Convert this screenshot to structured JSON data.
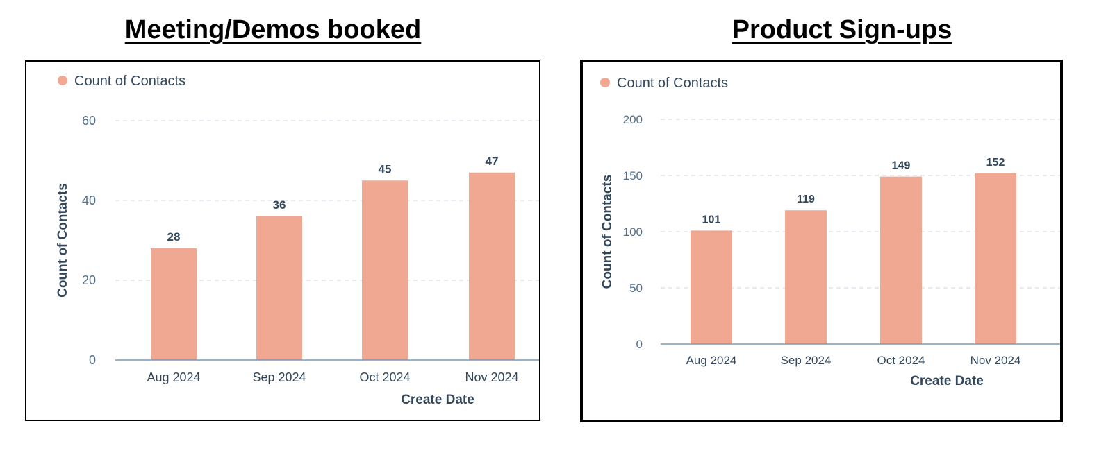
{
  "titles": [
    "Meeting/Demos booked",
    "Product Sign-ups"
  ],
  "colors": {
    "bar": "#f0a893",
    "axis_text": "#33475b",
    "tick_text": "#516f90",
    "grid": "#dfe3eb",
    "baseline": "#7c98b6"
  },
  "chart_data": [
    {
      "type": "bar",
      "title": "Meeting/Demos booked",
      "legend": [
        "Count of Contacts"
      ],
      "legend_position": "top-left",
      "xlabel": "Create Date",
      "ylabel": "Count of Contacts",
      "categories": [
        "Aug 2024",
        "Sep 2024",
        "Oct 2024",
        "Nov 2024"
      ],
      "series": [
        {
          "name": "Count of Contacts",
          "values": [
            28,
            36,
            45,
            47
          ]
        }
      ],
      "data_labels": [
        "28",
        "36",
        "45",
        "47"
      ],
      "yticks": [
        0,
        20,
        40,
        60
      ],
      "ytick_labels": [
        "0",
        "20",
        "40",
        "60"
      ],
      "ylim": [
        0,
        60
      ],
      "grid": true
    },
    {
      "type": "bar",
      "title": "Product Sign-ups",
      "legend": [
        "Count of Contacts"
      ],
      "legend_position": "top-left",
      "xlabel": "Create Date",
      "ylabel": "Count of Contacts",
      "categories": [
        "Aug 2024",
        "Sep 2024",
        "Oct 2024",
        "Nov 2024"
      ],
      "series": [
        {
          "name": "Count of Contacts",
          "values": [
            101,
            119,
            149,
            152
          ]
        }
      ],
      "data_labels": [
        "101",
        "119",
        "149",
        "152"
      ],
      "yticks": [
        0,
        50,
        100,
        150,
        200
      ],
      "ytick_labels": [
        "0",
        "50",
        "100",
        "150",
        "200"
      ],
      "ylim": [
        0,
        200
      ],
      "grid": true
    }
  ]
}
